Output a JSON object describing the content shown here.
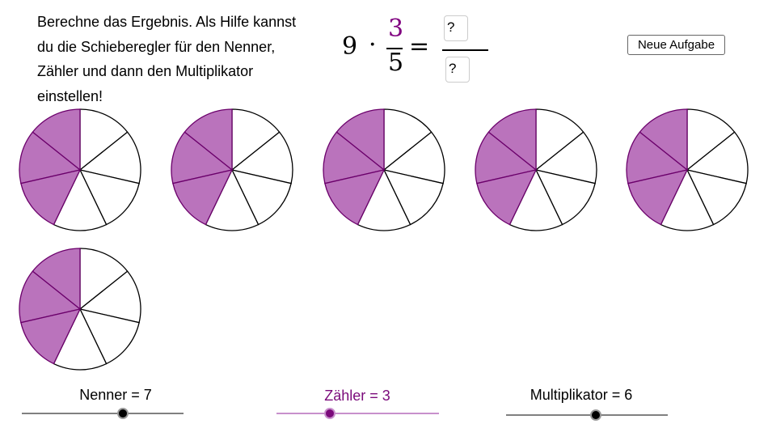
{
  "task": "Berechne das Ergebnis. Als Hilfe kannst du die Schieberegler für den Nenner, Zähler und dann den Multiplikator einstellen!",
  "equation": {
    "multiplier": "9",
    "dot": "·",
    "numerator": "3",
    "denominator": "5",
    "equals": "=",
    "answer_numerator": "?",
    "answer_denominator": "?"
  },
  "new_task_button": "Neue Aufgabe",
  "pies": {
    "count": 6,
    "slices": 7,
    "shaded": 3,
    "fill_color": "#BA73BC",
    "stroke_color": "#6B006B"
  },
  "sliders": [
    {
      "label": "Nenner = 7",
      "value": 7,
      "fraction": 0.625,
      "color": "#000000",
      "track": "#808080"
    },
    {
      "label": "Zähler = 3",
      "value": 3,
      "fraction": 0.33,
      "color": "#7B0A7B",
      "track": "#C890CC"
    },
    {
      "label": "Multiplikator = 6",
      "value": 6,
      "fraction": 0.555,
      "color": "#000000",
      "track": "#808080"
    }
  ],
  "colors": {
    "accent": "#800080"
  }
}
